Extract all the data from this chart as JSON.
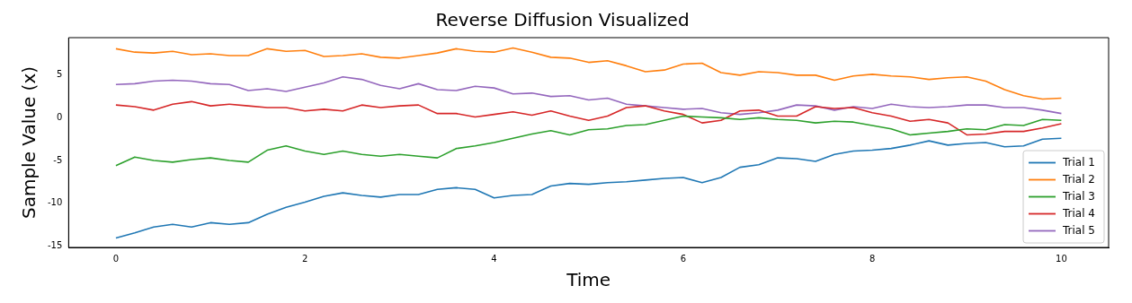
{
  "chart_data": {
    "type": "line",
    "title": "Reverse Diffusion Visualized",
    "xlabel": "Time",
    "ylabel": "Sample Value (x)",
    "x": [
      0,
      0.2,
      0.4,
      0.6,
      0.8,
      1,
      1.2,
      1.4,
      1.6,
      1.8,
      2,
      2.2,
      2.4,
      2.6,
      2.8,
      3,
      3.2,
      3.4,
      3.6,
      3.8,
      4,
      4.2,
      4.4,
      4.6,
      4.8,
      5,
      5.2,
      5.4,
      5.6,
      5.8,
      6,
      6.2,
      6.4,
      6.6,
      6.8,
      7,
      7.2,
      7.4,
      7.6,
      7.8,
      8,
      8.2,
      8.4,
      8.6,
      8.8,
      9,
      9.2,
      9.4,
      9.6,
      9.8,
      10
    ],
    "series": [
      {
        "name": "Trial 1",
        "color": "#1f77b4",
        "values": [
          -14.1,
          -13.5,
          -12.8,
          -12.5,
          -12.8,
          -12.3,
          -12.5,
          -12.3,
          -11.3,
          -10.5,
          -9.9,
          -9.2,
          -8.8,
          -9.1,
          -9.3,
          -9.0,
          -9.0,
          -8.4,
          -8.2,
          -8.4,
          -9.4,
          -9.1,
          -9.0,
          -8.0,
          -7.7,
          -7.8,
          -7.6,
          -7.5,
          -7.3,
          -7.1,
          -7.0,
          -7.6,
          -7.0,
          -5.8,
          -5.5,
          -4.7,
          -4.8,
          -5.1,
          -4.3,
          -3.9,
          -3.8,
          -3.6,
          -3.2,
          -2.7,
          -3.2,
          -3.0,
          -2.9,
          -3.4,
          -3.3,
          -2.5,
          -2.4
        ]
      },
      {
        "name": "Trial 2",
        "color": "#ff7f0e",
        "values": [
          8.1,
          7.7,
          7.6,
          7.8,
          7.4,
          7.5,
          7.3,
          7.3,
          8.1,
          7.8,
          7.9,
          7.2,
          7.3,
          7.5,
          7.1,
          7.0,
          7.3,
          7.6,
          8.1,
          7.8,
          7.7,
          8.2,
          7.7,
          7.1,
          7.0,
          6.5,
          6.7,
          6.1,
          5.4,
          5.6,
          6.3,
          6.4,
          5.3,
          5.0,
          5.4,
          5.3,
          5.0,
          5.0,
          4.4,
          4.9,
          5.1,
          4.9,
          4.8,
          4.5,
          4.7,
          4.8,
          4.3,
          3.3,
          2.6,
          2.2,
          2.3
        ]
      },
      {
        "name": "Trial 3",
        "color": "#2ca02c",
        "values": [
          -5.6,
          -4.6,
          -5.0,
          -5.2,
          -4.9,
          -4.7,
          -5.0,
          -5.2,
          -3.8,
          -3.3,
          -3.9,
          -4.3,
          -3.9,
          -4.3,
          -4.5,
          -4.3,
          -4.5,
          -4.7,
          -3.6,
          -3.3,
          -2.9,
          -2.4,
          -1.9,
          -1.5,
          -2.0,
          -1.4,
          -1.3,
          -0.9,
          -0.8,
          -0.3,
          0.2,
          0.1,
          0.0,
          -0.2,
          0.0,
          -0.2,
          -0.3,
          -0.6,
          -0.4,
          -0.5,
          -0.9,
          -1.3,
          -2.0,
          -1.8,
          -1.6,
          -1.3,
          -1.4,
          -0.8,
          -0.9,
          -0.2,
          -0.3
        ]
      },
      {
        "name": "Trial 4",
        "color": "#d62728",
        "values": [
          1.5,
          1.3,
          0.9,
          1.6,
          1.9,
          1.4,
          1.6,
          1.4,
          1.2,
          1.2,
          0.8,
          1.0,
          0.8,
          1.5,
          1.2,
          1.4,
          1.5,
          0.5,
          0.5,
          0.1,
          0.4,
          0.7,
          0.3,
          0.8,
          0.2,
          -0.3,
          0.2,
          1.2,
          1.4,
          0.8,
          0.4,
          -0.6,
          -0.3,
          0.8,
          0.9,
          0.2,
          0.2,
          1.3,
          1.1,
          1.2,
          0.6,
          0.2,
          -0.4,
          -0.2,
          -0.6,
          -2.0,
          -1.9,
          -1.6,
          -1.6,
          -1.2,
          -0.7
        ]
      },
      {
        "name": "Trial 5",
        "color": "#9467bd",
        "values": [
          3.9,
          4.0,
          4.3,
          4.4,
          4.3,
          4.0,
          3.9,
          3.2,
          3.4,
          3.1,
          3.6,
          4.1,
          4.8,
          4.5,
          3.8,
          3.4,
          4.0,
          3.3,
          3.2,
          3.7,
          3.5,
          2.8,
          2.9,
          2.5,
          2.6,
          2.1,
          2.3,
          1.6,
          1.4,
          1.2,
          1.0,
          1.1,
          0.6,
          0.4,
          0.6,
          0.9,
          1.5,
          1.4,
          0.9,
          1.3,
          1.1,
          1.6,
          1.3,
          1.2,
          1.3,
          1.5,
          1.5,
          1.2,
          1.2,
          0.9,
          0.5
        ]
      }
    ],
    "xlim": [
      -0.5,
      10.5
    ],
    "xticks": [
      0,
      2,
      4,
      6,
      8,
      10
    ],
    "ylim": [
      -15.2,
      9.4
    ],
    "yticks": [
      -15,
      -10,
      -5,
      0,
      5
    ],
    "grid": false,
    "legend": "bottom right",
    "marker": "none",
    "line_style": "solid"
  }
}
